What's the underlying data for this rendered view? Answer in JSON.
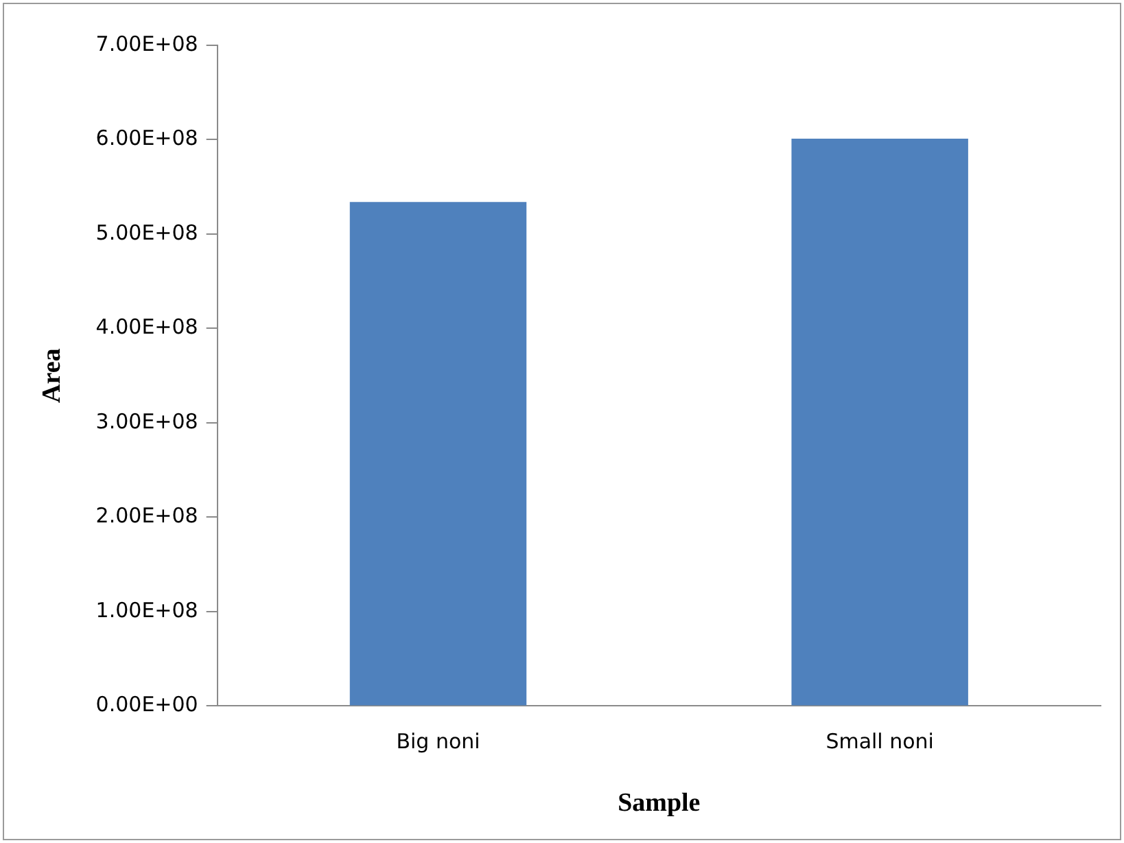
{
  "chart_data": {
    "type": "bar",
    "xlabel": "Sample",
    "ylabel": "Area",
    "categories": [
      "Big noni",
      "Small noni"
    ],
    "values": [
      534000000,
      601000000
    ],
    "color": "#4f81bd",
    "ylim": [
      0,
      700000000
    ],
    "yticks": [
      {
        "value": 0,
        "label": "0.00E+00"
      },
      {
        "value": 100000000,
        "label": "1.00E+08"
      },
      {
        "value": 200000000,
        "label": "2.00E+08"
      },
      {
        "value": 300000000,
        "label": "3.00E+08"
      },
      {
        "value": 400000000,
        "label": "4.00E+08"
      },
      {
        "value": 500000000,
        "label": "5.00E+08"
      },
      {
        "value": 600000000,
        "label": "6.00E+08"
      },
      {
        "value": 700000000,
        "label": "7.00E+08"
      }
    ],
    "grid": false,
    "legend": false
  }
}
